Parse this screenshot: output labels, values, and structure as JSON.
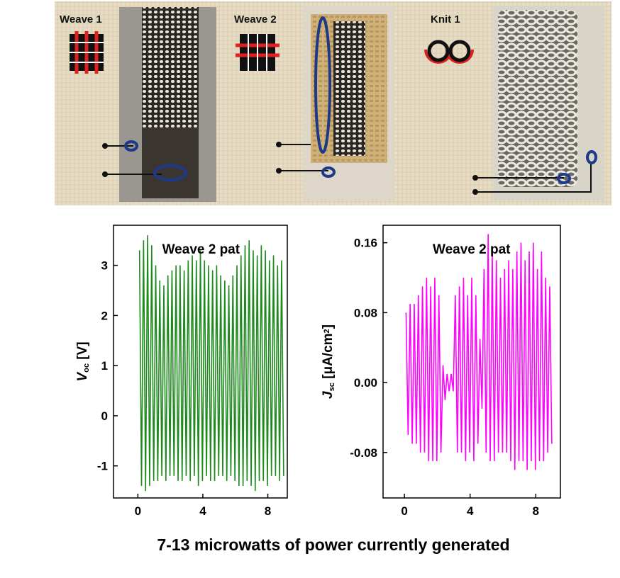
{
  "panel_labels": [
    "Weave 1",
    "Weave 2",
    "Knit 1"
  ],
  "caption": "7-13 microwatts of power currently generated",
  "chart_data": [
    {
      "type": "line",
      "annotation": "Weave 2 pat",
      "ylabel_parts": [
        {
          "text": "V",
          "style": "italic"
        },
        {
          "text": "oc",
          "style": "sub"
        },
        {
          "text": " [V]",
          "style": "normal"
        }
      ],
      "xlim": [
        -1.5,
        9.2
      ],
      "ylim": [
        -1.64,
        3.8
      ],
      "xticks": [
        0,
        4,
        8
      ],
      "yticks": [
        -1,
        0,
        1,
        2,
        3
      ],
      "series": [
        {
          "color": "#1e8a1e",
          "x": [
            0.1,
            0.225,
            0.35,
            0.475,
            0.6,
            0.725,
            0.85,
            0.975,
            1.1,
            1.225,
            1.35,
            1.475,
            1.6,
            1.725,
            1.85,
            1.975,
            2.1,
            2.225,
            2.35,
            2.475,
            2.6,
            2.725,
            2.85,
            2.975,
            3.1,
            3.225,
            3.35,
            3.475,
            3.6,
            3.725,
            3.85,
            3.975,
            4.1,
            4.225,
            4.35,
            4.475,
            4.6,
            4.725,
            4.85,
            4.975,
            5.1,
            5.225,
            5.35,
            5.475,
            5.6,
            5.725,
            5.85,
            5.975,
            6.1,
            6.225,
            6.35,
            6.475,
            6.6,
            6.725,
            6.85,
            6.975,
            7.1,
            7.225,
            7.35,
            7.475,
            7.6,
            7.725,
            7.85,
            7.975,
            8.1,
            8.225,
            8.35,
            8.475,
            8.6,
            8.725,
            8.85,
            8.975
          ],
          "values": [
            3.3,
            -1.4,
            3.5,
            -1.5,
            3.6,
            -1.4,
            3.4,
            -1.3,
            3.0,
            -1.3,
            2.7,
            -1.2,
            2.6,
            -1.3,
            2.8,
            -1.2,
            2.9,
            -1.2,
            3.0,
            -1.3,
            3.0,
            -1.3,
            2.9,
            -1.2,
            3.1,
            -1.3,
            3.2,
            -1.2,
            3.1,
            -1.4,
            3.3,
            -1.3,
            3.1,
            -1.2,
            3.0,
            -1.3,
            2.9,
            -1.3,
            3.0,
            -1.2,
            2.8,
            -1.2,
            2.7,
            -1.3,
            2.6,
            -1.2,
            2.8,
            -1.3,
            3.0,
            -1.4,
            3.2,
            -1.4,
            3.4,
            -1.3,
            3.5,
            -1.4,
            3.3,
            -1.5,
            3.2,
            -1.3,
            3.4,
            -1.3,
            3.3,
            -1.4,
            3.1,
            -1.2,
            3.2,
            -1.2,
            3.0,
            -1.3,
            3.1,
            -1.2
          ]
        }
      ]
    },
    {
      "type": "line",
      "annotation": "Weave 2 pat",
      "ylabel_parts": [
        {
          "text": "J",
          "style": "italic"
        },
        {
          "text": "sc",
          "style": "sub"
        },
        {
          "text": " [μA/cm",
          "style": "normal"
        },
        {
          "text": "2",
          "style": "sup"
        },
        {
          "text": "]",
          "style": "normal"
        }
      ],
      "xlim": [
        -1.3,
        9.5
      ],
      "ylim": [
        -0.132,
        0.18
      ],
      "xticks": [
        0,
        4,
        8
      ],
      "yticks": [
        {
          "value": -0.08,
          "label": "-0.08"
        },
        {
          "value": 0,
          "label": "0.00"
        },
        {
          "value": 0.08,
          "label": "0.08"
        },
        {
          "value": 0.16,
          "label": "0.16"
        }
      ],
      "series": [
        {
          "color": "#ff00ff",
          "x": [
            0.1,
            0.225,
            0.35,
            0.475,
            0.6,
            0.725,
            0.85,
            0.975,
            1.1,
            1.225,
            1.35,
            1.475,
            1.6,
            1.725,
            1.85,
            1.975,
            2.1,
            2.225,
            2.35,
            2.475,
            2.6,
            2.725,
            2.85,
            2.975,
            3.1,
            3.225,
            3.35,
            3.475,
            3.6,
            3.725,
            3.85,
            3.975,
            4.1,
            4.225,
            4.35,
            4.475,
            4.6,
            4.725,
            4.85,
            4.975,
            5.1,
            5.225,
            5.35,
            5.475,
            5.6,
            5.725,
            5.85,
            5.975,
            6.1,
            6.225,
            6.35,
            6.475,
            6.6,
            6.725,
            6.85,
            6.975,
            7.1,
            7.225,
            7.35,
            7.475,
            7.6,
            7.725,
            7.85,
            7.975,
            8.1,
            8.225,
            8.35,
            8.475,
            8.6,
            8.725,
            8.85,
            8.975
          ],
          "values": [
            0.08,
            -0.06,
            0.09,
            -0.07,
            0.09,
            -0.07,
            0.1,
            -0.08,
            0.11,
            -0.08,
            0.12,
            -0.09,
            0.11,
            -0.09,
            0.12,
            -0.09,
            0.1,
            -0.08,
            0.02,
            -0.02,
            0.01,
            -0.01,
            0.01,
            -0.01,
            0.1,
            -0.08,
            0.11,
            -0.08,
            0.12,
            -0.09,
            0.1,
            -0.08,
            0.12,
            -0.09,
            0.1,
            -0.07,
            0.05,
            -0.03,
            0.13,
            -0.08,
            0.17,
            -0.09,
            0.15,
            -0.09,
            0.14,
            -0.08,
            0.12,
            -0.08,
            0.13,
            -0.08,
            0.14,
            -0.09,
            0.13,
            -0.1,
            0.15,
            -0.09,
            0.16,
            -0.09,
            0.14,
            -0.1,
            0.15,
            -0.09,
            0.16,
            -0.1,
            0.13,
            -0.09,
            0.15,
            -0.09,
            0.12,
            -0.08,
            0.11,
            -0.07
          ]
        }
      ]
    }
  ]
}
